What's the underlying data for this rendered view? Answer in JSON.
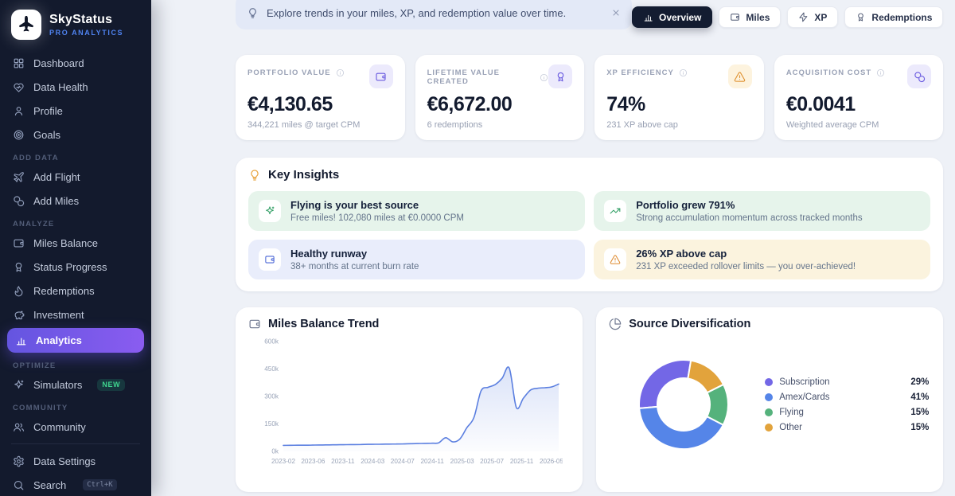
{
  "app": {
    "name": "SkyStatus",
    "subtitle": "PRO ANALYTICS",
    "logo_icon": "plane"
  },
  "colors": {
    "accent_purple": "#6c5ce7",
    "sidebar_bg": "#131a2d",
    "active_gradient": [
      "#6455e0",
      "#8a5cf0"
    ],
    "brand_blue": "#4f83f1",
    "warning_amber": "#df9130",
    "success_green": "#2f9e63"
  },
  "sidebar": {
    "sections": [
      {
        "label": null,
        "items": [
          {
            "label": "Dashboard",
            "icon": "grid"
          },
          {
            "label": "Data Health",
            "icon": "heart-pulse"
          },
          {
            "label": "Profile",
            "icon": "user"
          },
          {
            "label": "Goals",
            "icon": "target"
          }
        ]
      },
      {
        "label": "ADD DATA",
        "items": [
          {
            "label": "Add Flight",
            "icon": "plane"
          },
          {
            "label": "Add Miles",
            "icon": "coins"
          }
        ]
      },
      {
        "label": "ANALYZE",
        "items": [
          {
            "label": "Miles Balance",
            "icon": "wallet"
          },
          {
            "label": "Status Progress",
            "icon": "award"
          },
          {
            "label": "Redemptions",
            "icon": "flame"
          },
          {
            "label": "Investment",
            "icon": "piggy-bank"
          },
          {
            "label": "Analytics",
            "icon": "bar-chart",
            "active": true
          }
        ]
      },
      {
        "label": "OPTIMIZE",
        "items": [
          {
            "label": "Simulators",
            "icon": "sparkles",
            "badge": "NEW"
          }
        ]
      },
      {
        "label": "COMMUNITY",
        "items": [
          {
            "label": "Community",
            "icon": "users"
          }
        ]
      }
    ],
    "footer_items": [
      {
        "label": "Data Settings",
        "icon": "gear"
      },
      {
        "label": "Search",
        "icon": "search",
        "shortcut": "Ctrl+K"
      }
    ]
  },
  "banner": {
    "icon": "lightbulb",
    "text": "Explore trends in your miles, XP, and redemption value over time.",
    "close_icon": "close"
  },
  "tabs": [
    {
      "label": "Overview",
      "icon": "bar-chart",
      "active": true
    },
    {
      "label": "Miles",
      "icon": "wallet"
    },
    {
      "label": "XP",
      "icon": "zap"
    },
    {
      "label": "Redemptions",
      "icon": "award"
    }
  ],
  "stats": [
    {
      "label": "PORTFOLIO VALUE",
      "value": "€4,130.65",
      "sub": "344,221 miles @ target CPM",
      "icon": "wallet",
      "tone": "purple"
    },
    {
      "label": "LIFETIME VALUE CREATED",
      "value": "€6,672.00",
      "sub": "6 redemptions",
      "icon": "award",
      "tone": "purple"
    },
    {
      "label": "XP EFFICIENCY",
      "value": "74%",
      "sub": "231 XP above cap",
      "icon": "warning",
      "tone": "amber"
    },
    {
      "label": "ACQUISITION COST",
      "value": "€0.0041",
      "sub": "Weighted average CPM",
      "icon": "coins",
      "tone": "purple"
    }
  ],
  "insights": {
    "title": "Key Insights",
    "header_icon": "lightbulb",
    "items": [
      {
        "title": "Flying is your best source",
        "sub": "Free miles! 102,080 miles at €0.0000 CPM",
        "icon": "sparkles",
        "tone": "green"
      },
      {
        "title": "Portfolio grew 791%",
        "sub": "Strong accumulation momentum across tracked months",
        "icon": "trending-up",
        "tone": "green"
      },
      {
        "title": "Healthy runway",
        "sub": "38+ months at current burn rate",
        "icon": "wallet",
        "tone": "blue"
      },
      {
        "title": "26% XP above cap",
        "sub": "231 XP exceeded rollover limits — you over-achieved!",
        "icon": "warning",
        "tone": "amber"
      }
    ]
  },
  "chart_data": [
    {
      "type": "area",
      "title": "Miles Balance Trend",
      "header_icon": "wallet",
      "x": [
        "2023-02",
        "2023-03",
        "2023-04",
        "2023-05",
        "2023-06",
        "2023-07",
        "2023-08",
        "2023-09",
        "2023-10",
        "2023-11",
        "2023-12",
        "2024-01",
        "2024-02",
        "2024-03",
        "2024-04",
        "2024-05",
        "2024-06",
        "2024-07",
        "2024-08",
        "2024-09",
        "2024-10",
        "2024-11",
        "2024-12",
        "2025-01",
        "2025-02",
        "2025-03",
        "2025-04",
        "2025-05",
        "2025-06",
        "2025-07",
        "2025-08",
        "2025-09",
        "2025-10",
        "2025-11",
        "2025-12",
        "2026-01",
        "2026-02",
        "2026-03",
        "2026-04",
        "2026-05"
      ],
      "values": [
        33000,
        33500,
        34000,
        34000,
        34500,
        35000,
        35500,
        36000,
        36500,
        37000,
        37500,
        38000,
        38500,
        39000,
        39500,
        40000,
        40500,
        41000,
        42000,
        43000,
        44000,
        45000,
        47000,
        75000,
        52000,
        68000,
        130000,
        185000,
        330000,
        350000,
        365000,
        400000,
        455000,
        240000,
        290000,
        335000,
        345000,
        348000,
        352000,
        368000
      ],
      "ylim": [
        0,
        600000
      ],
      "y_ticks": [
        0,
        150000,
        300000,
        450000,
        600000
      ],
      "y_tick_labels": [
        "0k",
        "150k",
        "300k",
        "450k",
        "600k"
      ],
      "x_tick_labels": [
        "2023-02",
        "2023-06",
        "2023-11",
        "2024-03",
        "2024-07",
        "2024-11",
        "2025-03",
        "2025-07",
        "2025-11",
        "2026-05"
      ],
      "line_color": "#5b7fe0",
      "grid": false,
      "legend_position": "none"
    },
    {
      "type": "donut",
      "title": "Source Diversification",
      "header_icon": "pie-chart",
      "segments": [
        {
          "label": "Subscription",
          "pct": 29,
          "color": "#7367e6"
        },
        {
          "label": "Amex/Cards",
          "pct": 41,
          "color": "#5585e8"
        },
        {
          "label": "Flying",
          "pct": 15,
          "color": "#55b27c"
        },
        {
          "label": "Other",
          "pct": 15,
          "color": "#e2a33c"
        }
      ],
      "legend_position": "right"
    }
  ]
}
